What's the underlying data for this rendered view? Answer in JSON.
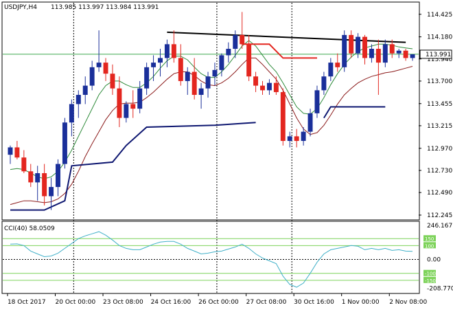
{
  "header": {
    "symbol": "USDJPY,H4",
    "ohlc": "113.985 113.997 113.984 113.991"
  },
  "price_axis": {
    "ticks": [
      "114.425",
      "114.180",
      "113.940",
      "113.700",
      "113.455",
      "113.215",
      "112.970",
      "112.730",
      "112.490",
      "112.245"
    ],
    "current_price": "113.991"
  },
  "indicator": {
    "label": "CCI(40) 58.0509",
    "ticks": [
      "246.1671",
      "0.00",
      "-208.7702"
    ],
    "levels": [
      "150",
      "100",
      "-100",
      "-150"
    ]
  },
  "time_axis": {
    "labels": [
      "18 Oct 2017",
      "20 Oct 00:00",
      "23 Oct 08:00",
      "24 Oct 16:00",
      "26 Oct 00:00",
      "27 Oct 08:00",
      "30 Oct 16:00",
      "1 Nov 00:00",
      "2 Nov 08:00"
    ]
  },
  "colors": {
    "bull": "#1a2f9a",
    "bear": "#e3261f",
    "ma_fast": "#2e8b3a",
    "ma_slow": "#8b1a1a",
    "channel": "#0d1670",
    "current_line": "#3aa84a",
    "cci_line": "#40b0c8",
    "cci_level": "#7dd35a"
  },
  "chart_data": {
    "type": "candlestick",
    "ylim": [
      112.2,
      114.55
    ],
    "cci_ylim": [
      -240,
      270
    ],
    "candles": [
      [
        112.9,
        113.0,
        112.8,
        112.98
      ],
      [
        112.98,
        113.05,
        112.85,
        112.87
      ],
      [
        112.87,
        112.95,
        112.7,
        112.72
      ],
      [
        112.72,
        112.8,
        112.55,
        112.6
      ],
      [
        112.6,
        112.78,
        112.4,
        112.7
      ],
      [
        112.7,
        112.8,
        112.35,
        112.45
      ],
      [
        112.45,
        112.65,
        112.3,
        112.55
      ],
      [
        112.55,
        112.85,
        112.45,
        112.8
      ],
      [
        112.8,
        113.3,
        112.75,
        113.25
      ],
      [
        113.25,
        113.5,
        113.1,
        113.45
      ],
      [
        113.45,
        113.6,
        113.3,
        113.55
      ],
      [
        113.55,
        113.75,
        113.45,
        113.65
      ],
      [
        113.65,
        113.92,
        113.6,
        113.85
      ],
      [
        113.85,
        114.25,
        113.8,
        113.9
      ],
      [
        113.9,
        113.95,
        113.7,
        113.78
      ],
      [
        113.78,
        113.88,
        113.55,
        113.62
      ],
      [
        113.62,
        113.75,
        113.2,
        113.3
      ],
      [
        113.3,
        113.48,
        113.25,
        113.45
      ],
      [
        113.45,
        113.6,
        113.3,
        113.4
      ],
      [
        113.4,
        113.7,
        113.35,
        113.62
      ],
      [
        113.62,
        113.9,
        113.55,
        113.85
      ],
      [
        113.85,
        113.98,
        113.7,
        113.9
      ],
      [
        113.9,
        114.05,
        113.75,
        113.95
      ],
      [
        113.95,
        114.15,
        113.85,
        114.1
      ],
      [
        114.1,
        114.25,
        113.9,
        113.95
      ],
      [
        113.95,
        114.1,
        113.65,
        113.7
      ],
      [
        113.7,
        113.85,
        113.55,
        113.8
      ],
      [
        113.8,
        113.95,
        113.5,
        113.55
      ],
      [
        113.55,
        113.68,
        113.4,
        113.62
      ],
      [
        113.62,
        113.8,
        113.52,
        113.75
      ],
      [
        113.75,
        113.9,
        113.65,
        113.82
      ],
      [
        113.82,
        114.0,
        113.75,
        113.98
      ],
      [
        113.98,
        114.12,
        113.9,
        114.05
      ],
      [
        114.05,
        114.25,
        113.95,
        114.2
      ],
      [
        114.2,
        114.45,
        114.05,
        114.1
      ],
      [
        114.1,
        114.2,
        113.7,
        113.75
      ],
      [
        113.75,
        113.8,
        113.58,
        113.65
      ],
      [
        113.65,
        113.7,
        113.55,
        113.6
      ],
      [
        113.6,
        113.72,
        113.55,
        113.68
      ],
      [
        113.68,
        113.75,
        113.55,
        113.58
      ],
      [
        113.58,
        113.62,
        113.0,
        113.05
      ],
      [
        113.05,
        113.15,
        112.98,
        113.1
      ],
      [
        113.1,
        113.18,
        112.98,
        113.05
      ],
      [
        113.05,
        113.2,
        113.0,
        113.15
      ],
      [
        113.15,
        113.4,
        113.1,
        113.35
      ],
      [
        113.35,
        113.65,
        113.3,
        113.6
      ],
      [
        113.6,
        113.8,
        113.55,
        113.75
      ],
      [
        113.75,
        113.95,
        113.7,
        113.9
      ],
      [
        113.9,
        114.0,
        113.8,
        113.85
      ],
      [
        113.85,
        114.25,
        113.8,
        114.2
      ],
      [
        114.2,
        114.25,
        113.95,
        114.0
      ],
      [
        114.0,
        114.22,
        113.95,
        114.18
      ],
      [
        114.18,
        114.2,
        113.88,
        113.95
      ],
      [
        113.95,
        114.1,
        113.9,
        114.05
      ],
      [
        114.05,
        114.15,
        113.55,
        113.9
      ],
      [
        113.9,
        114.15,
        113.85,
        114.1
      ],
      [
        114.1,
        114.15,
        113.95,
        114.0
      ],
      [
        114.0,
        114.05,
        113.95,
        114.03
      ],
      [
        114.03,
        114.05,
        113.92,
        113.95
      ],
      [
        113.95,
        113.99,
        113.92,
        113.99
      ]
    ],
    "ma_fast": [
      112.74,
      112.75,
      112.74,
      112.7,
      112.66,
      112.64,
      112.66,
      112.72,
      112.82,
      112.95,
      113.1,
      113.25,
      113.4,
      113.55,
      113.65,
      113.7,
      113.7,
      113.66,
      113.63,
      113.63,
      113.68,
      113.75,
      113.84,
      113.92,
      113.97,
      113.97,
      113.93,
      113.85,
      113.78,
      113.74,
      113.74,
      113.8,
      113.88,
      113.98,
      114.08,
      114.14,
      114.08,
      113.98,
      113.88,
      113.8,
      113.68,
      113.55,
      113.42,
      113.35,
      113.34,
      113.4,
      113.52,
      113.66,
      113.78,
      113.88,
      113.96,
      114.02,
      114.06,
      114.08,
      114.1,
      114.1,
      114.09,
      114.07,
      114.06,
      114.05
    ],
    "ma_slow": [
      112.36,
      112.38,
      112.4,
      112.4,
      112.39,
      112.38,
      112.39,
      112.42,
      112.48,
      112.58,
      112.72,
      112.88,
      113.02,
      113.15,
      113.28,
      113.38,
      113.45,
      113.46,
      113.46,
      113.47,
      113.52,
      113.58,
      113.65,
      113.72,
      113.78,
      113.8,
      113.8,
      113.76,
      113.7,
      113.66,
      113.65,
      113.68,
      113.73,
      113.8,
      113.88,
      113.95,
      113.95,
      113.88,
      113.8,
      113.72,
      113.6,
      113.45,
      113.3,
      113.18,
      113.12,
      113.14,
      113.22,
      113.33,
      113.45,
      113.55,
      113.62,
      113.68,
      113.72,
      113.75,
      113.77,
      113.79,
      113.8,
      113.82,
      113.84,
      113.86
    ],
    "cci": [
      110,
      112,
      100,
      60,
      40,
      20,
      25,
      45,
      80,
      115,
      150,
      170,
      185,
      200,
      175,
      140,
      100,
      80,
      70,
      70,
      90,
      110,
      125,
      130,
      130,
      110,
      80,
      60,
      40,
      45,
      55,
      60,
      75,
      90,
      110,
      80,
      40,
      10,
      -10,
      -30,
      -120,
      -180,
      -200,
      -170,
      -100,
      -20,
      40,
      70,
      80,
      90,
      100,
      95,
      70,
      80,
      70,
      80,
      65,
      70,
      60,
      58
    ],
    "channel_segments": [
      {
        "name": "upper-trend",
        "points": [
          [
            23,
            114.23
          ],
          [
            58,
            114.12
          ]
        ]
      },
      {
        "name": "upper-red",
        "points": [
          [
            34,
            114.1
          ],
          [
            38,
            114.1
          ],
          [
            40,
            113.95
          ],
          [
            45,
            113.95
          ]
        ]
      },
      {
        "name": "lower-blue",
        "points": [
          [
            0,
            112.3
          ],
          [
            5,
            112.3
          ],
          [
            8,
            112.4
          ],
          [
            9,
            112.78
          ],
          [
            15,
            112.82
          ],
          [
            17,
            113.0
          ],
          [
            20,
            113.2
          ],
          [
            30,
            113.22
          ],
          [
            36,
            113.25
          ],
          [
            36,
            113.25
          ]
        ]
      },
      {
        "name": "lower-blue-2",
        "points": [
          [
            46,
            113.3
          ],
          [
            47,
            113.42
          ],
          [
            55,
            113.42
          ]
        ]
      }
    ]
  }
}
